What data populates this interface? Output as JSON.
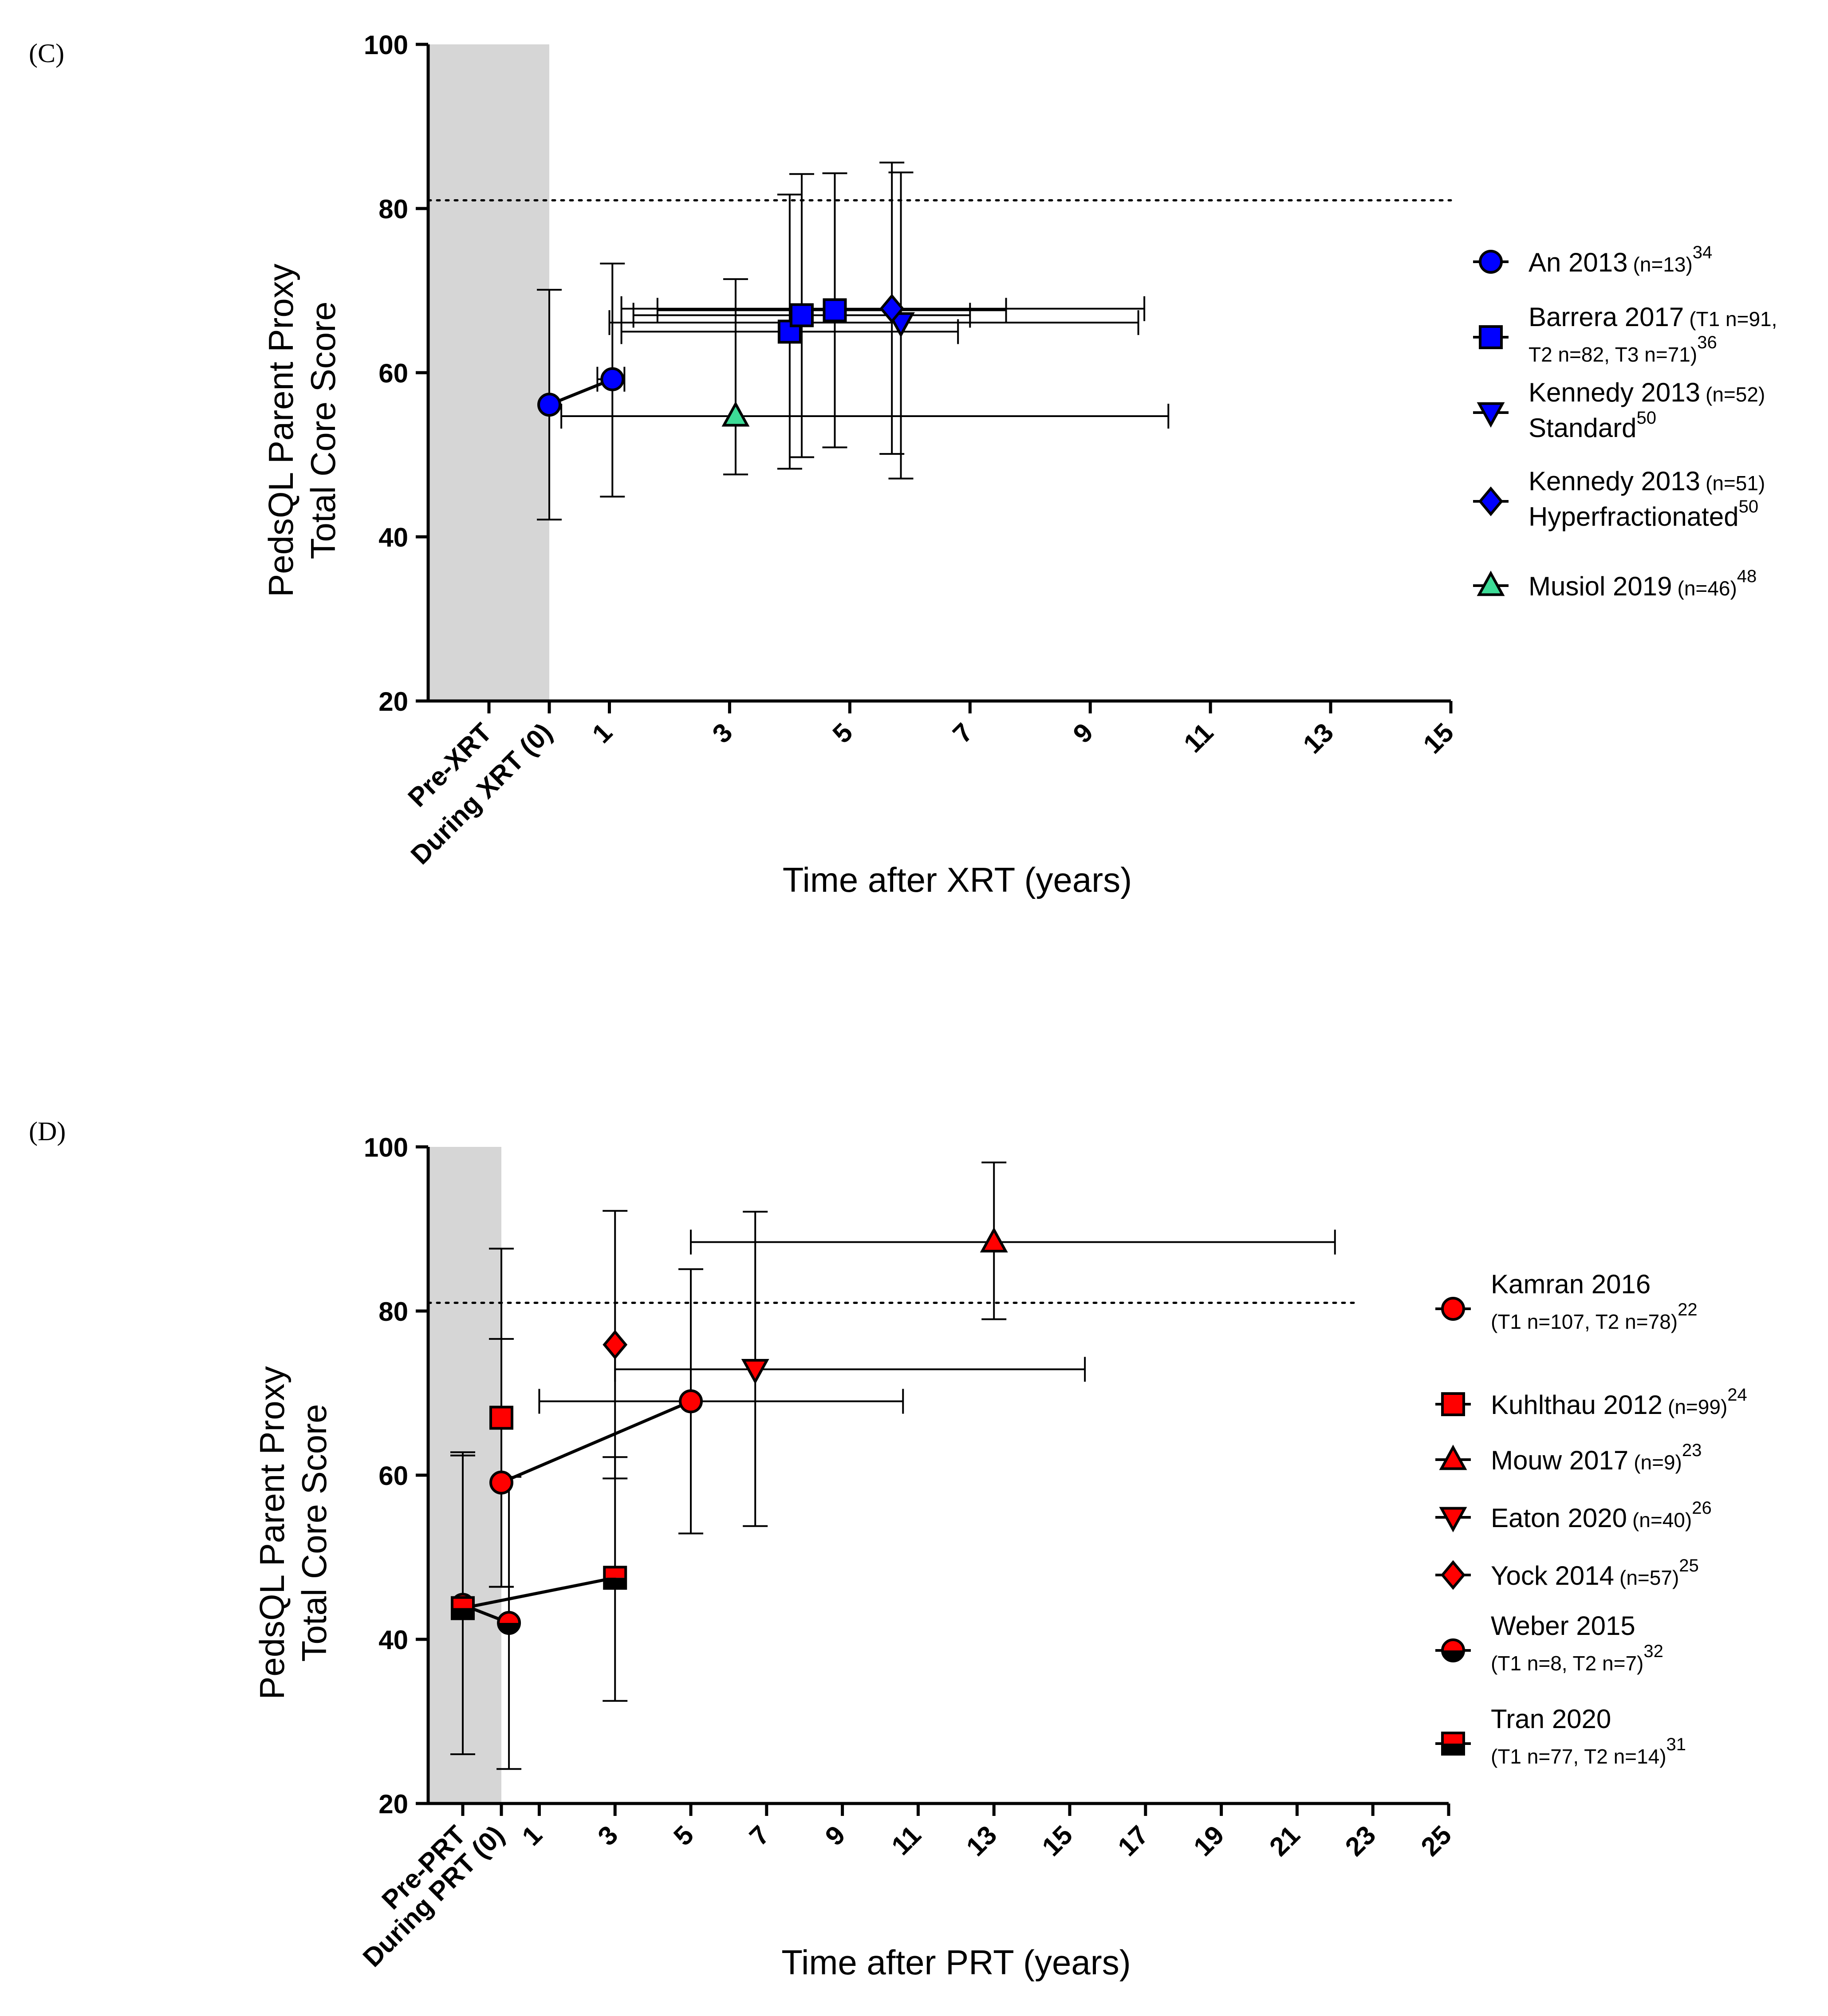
{
  "chart_data": [
    {
      "type": "scatter",
      "panel_label": "(C)",
      "xlabel": "Time after XRT (years)",
      "ylabel_line1": "PedsQL Parent Proxy",
      "ylabel_line2": "Total Core Score",
      "ylim": [
        20,
        100
      ],
      "yticks": [
        20,
        40,
        60,
        80,
        100
      ],
      "xlim": [
        -1,
        15
      ],
      "xticks": [
        -1,
        0,
        1,
        3,
        5,
        7,
        9,
        11,
        13,
        15
      ],
      "xtick_labels": [
        "Pre-XRT",
        "During XRT (0)",
        "1",
        "3",
        "5",
        "7",
        "9",
        "11",
        "13",
        "15"
      ],
      "shaded_region": [
        -1,
        0
      ],
      "reference_line_y": 81,
      "series": [
        {
          "name": "An 2013",
          "n": "(n=13)",
          "n_extra": "",
          "ref": "34",
          "color": "#0000ff",
          "marker": "circle",
          "connected": true,
          "points": [
            {
              "x": 0,
              "y": 56.1,
              "ylo": 42.1,
              "yhi": 70.1
            },
            {
              "x": 1.05,
              "y": 59.2,
              "ylo": 44.9,
              "yhi": 73.3,
              "xlo": 0.8,
              "xhi": 1.25
            }
          ]
        },
        {
          "name": "Barrera 2017",
          "n": "(T1 n=91,",
          "n_extra": "T2 n=82, T3 n=71)",
          "ref": "36",
          "color": "#0000ff",
          "marker": "square",
          "connected": false,
          "points": [
            {
              "x": 4.0,
              "y": 65.0,
              "ylo": 48.3,
              "yhi": 81.7,
              "xlo": 1.2,
              "xhi": 6.8
            },
            {
              "x": 4.2,
              "y": 67.0,
              "ylo": 49.7,
              "yhi": 84.2,
              "xlo": 1.4,
              "xhi": 7.0
            },
            {
              "x": 4.75,
              "y": 67.6,
              "ylo": 50.9,
              "yhi": 84.3,
              "xlo": 1.8,
              "xhi": 7.6
            }
          ]
        },
        {
          "name": "Kennedy 2013",
          "n": "(n=52)",
          "n_extra": "Standard",
          "ref": "50",
          "color": "#0000ff",
          "marker": "triangle-down",
          "connected": false,
          "points": [
            {
              "x": 5.85,
              "y": 66.1,
              "ylo": 47.1,
              "yhi": 84.4,
              "xlo": 1.0,
              "xhi": 9.8
            }
          ]
        },
        {
          "name": "Kennedy 2013",
          "n": "(n=51)",
          "n_extra": "Hyperfractionated",
          "ref": "50",
          "color": "#0000ff",
          "marker": "diamond",
          "connected": false,
          "points": [
            {
              "x": 5.7,
              "y": 67.8,
              "ylo": 50.1,
              "yhi": 85.6,
              "xlo": 1.2,
              "xhi": 9.9
            }
          ]
        },
        {
          "name": "Musiol 2019",
          "n": "(n=46)",
          "n_extra": "",
          "ref": "48",
          "color": "#3ddc97",
          "marker": "triangle-up",
          "connected": false,
          "points": [
            {
              "x": 3.1,
              "y": 54.7,
              "ylo": 47.6,
              "yhi": 71.4,
              "xlo": 0.2,
              "xhi": 10.3
            }
          ]
        }
      ]
    },
    {
      "type": "scatter",
      "panel_label": "(D)",
      "xlabel": "Time after PRT (years)",
      "ylabel_line1": "PedsQL Parent Proxy",
      "ylabel_line2": "Total Core Score",
      "ylim": [
        20,
        100
      ],
      "yticks": [
        20,
        40,
        60,
        80,
        100
      ],
      "xlim": [
        -1,
        25
      ],
      "xticks": [
        -1,
        0,
        1,
        3,
        5,
        7,
        9,
        11,
        13,
        15,
        17,
        19,
        21,
        23,
        25
      ],
      "xtick_labels": [
        "Pre-PRT",
        "During PRT (0)",
        "1",
        "3",
        "5",
        "7",
        "9",
        "11",
        "13",
        "15",
        "17",
        "19",
        "21",
        "23",
        "25"
      ],
      "shaded_region": [
        -1,
        0
      ],
      "reference_line_y": 81,
      "series": [
        {
          "name": "Kamran 2016",
          "n": "(T1 n=107, T2 n=78)",
          "n_extra": "",
          "ref": "22",
          "color": "#ff0000",
          "marker": "circle",
          "connected": true,
          "legend_two_line": true,
          "points": [
            {
              "x": 0.0,
              "y": 59.1,
              "ylo": 46.4,
              "yhi": 76.6
            },
            {
              "x": 5.0,
              "y": 69.0,
              "ylo": 52.9,
              "yhi": 85.1,
              "xlo": 1.0,
              "xhi": 10.6
            }
          ]
        },
        {
          "name": "Kuhlthau 2012",
          "n": "(n=99)",
          "n_extra": "",
          "ref": "24",
          "color": "#ff0000",
          "marker": "square",
          "connected": false,
          "points": [
            {
              "x": 0.0,
              "y": 67.0,
              "ylo": 46.4,
              "yhi": 87.6
            }
          ]
        },
        {
          "name": "Mouw 2017",
          "n": "(n=9)",
          "n_extra": "",
          "ref": "23",
          "color": "#ff0000",
          "marker": "triangle-up",
          "connected": false,
          "points": [
            {
              "x": 13.0,
              "y": 88.4,
              "ylo": 79.0,
              "yhi": 98.1,
              "xlo": 5.0,
              "xhi": 22.0
            }
          ]
        },
        {
          "name": "Eaton 2020",
          "n": "(n=40)",
          "n_extra": "",
          "ref": "26",
          "color": "#ff0000",
          "marker": "triangle-down",
          "connected": false,
          "points": [
            {
              "x": 6.7,
              "y": 72.9,
              "ylo": 53.8,
              "yhi": 92.1,
              "xlo": 3.0,
              "xhi": 15.4
            }
          ]
        },
        {
          "name": "Yock 2014",
          "n": "(n=57)",
          "n_extra": "",
          "ref": "25",
          "color": "#ff0000",
          "marker": "diamond",
          "connected": false,
          "points": [
            {
              "x": 3.0,
              "y": 75.9,
              "ylo": 59.6,
              "yhi": 92.2
            }
          ]
        },
        {
          "name": "Weber 2015",
          "n": "(T1 n=8, T2 n=7)",
          "n_extra": "",
          "ref": "32",
          "color": "#ff0000",
          "marker": "half-circle",
          "connected": true,
          "legend_two_line": true,
          "points": [
            {
              "x": -1.0,
              "y": 44.2,
              "ylo": 26.0,
              "yhi": 62.4
            },
            {
              "x": 0.2,
              "y": 42.0,
              "ylo": 24.2,
              "yhi": 59.8
            }
          ]
        },
        {
          "name": "Tran 2020",
          "n": "(T1 n=77, T2 n=14)",
          "n_extra": "",
          "ref": "31",
          "color": "#ff0000",
          "marker": "half-square",
          "connected": true,
          "legend_two_line": true,
          "points": [
            {
              "x": -1.0,
              "y": 43.8,
              "ylo": 26.0,
              "yhi": 62.8
            },
            {
              "x": 3.0,
              "y": 47.5,
              "ylo": 32.5,
              "yhi": 62.2
            }
          ]
        }
      ]
    }
  ]
}
